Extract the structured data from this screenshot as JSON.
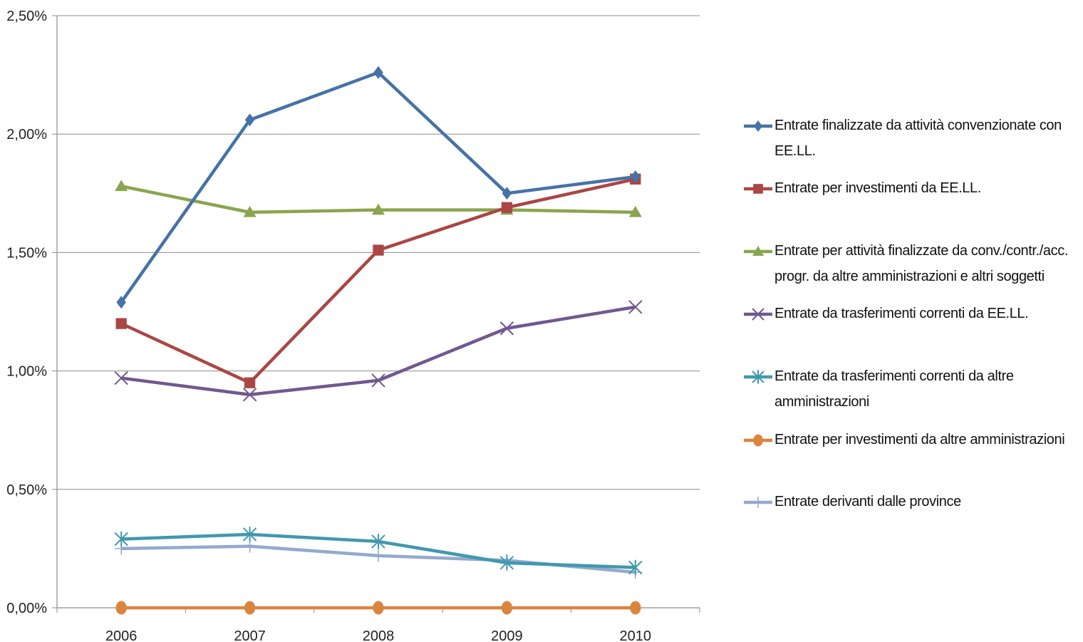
{
  "chart_data": {
    "type": "line",
    "categories": [
      "2006",
      "2007",
      "2008",
      "2009",
      "2010"
    ],
    "y_ticks": [
      "0,00%",
      "0,50%",
      "1,00%",
      "1,50%",
      "2,00%",
      "2,50%"
    ],
    "ylim": [
      0,
      2.5
    ],
    "grid": true,
    "legend_position": "right",
    "series": [
      {
        "name": "Entrate finalizzate da attività convenzionate con EE.LL.",
        "color": "#4572A7",
        "marker": "diamond",
        "values": [
          1.29,
          2.06,
          2.26,
          1.75,
          1.82
        ]
      },
      {
        "name": "Entrate per investimenti da EE.LL.",
        "color": "#AA4643",
        "marker": "square",
        "values": [
          1.2,
          0.95,
          1.51,
          1.69,
          1.81
        ]
      },
      {
        "name": "Entrate per attività finalizzate da conv./contr./acc. progr. da altre amministrazioni e altri soggetti",
        "color": "#89A54E",
        "marker": "triangle",
        "values": [
          1.78,
          1.67,
          1.68,
          1.68,
          1.67
        ]
      },
      {
        "name": "Entrate da trasferimenti correnti da EE.LL.",
        "color": "#71588F",
        "marker": "x",
        "values": [
          0.97,
          0.9,
          0.96,
          1.18,
          1.27
        ]
      },
      {
        "name": "Entrate da trasferimenti correnti da altre amministrazioni",
        "color": "#4198AF",
        "marker": "star",
        "values": [
          0.29,
          0.31,
          0.28,
          0.19,
          0.17
        ]
      },
      {
        "name": "Entrate per investimenti da altre amministrazioni",
        "color": "#DB843D",
        "marker": "circle",
        "values": [
          0.0,
          0.0,
          0.0,
          0.0,
          0.0
        ]
      },
      {
        "name": "Entrate derivanti dalle province",
        "color": "#93A9CF",
        "marker": "plus",
        "values": [
          0.25,
          0.26,
          0.22,
          0.2,
          0.15
        ]
      }
    ]
  }
}
